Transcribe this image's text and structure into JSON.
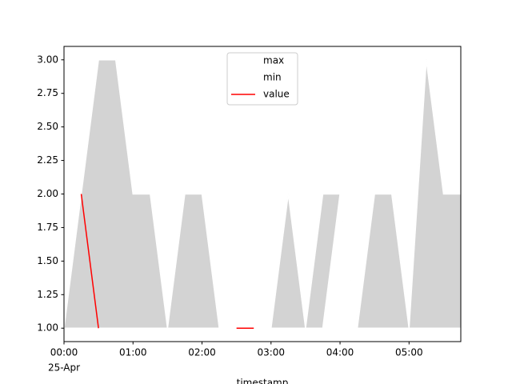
{
  "chart_data": {
    "type": "line",
    "x": [
      "00:00",
      "00:15",
      "00:30",
      "00:45",
      "01:00",
      "01:15",
      "01:30",
      "01:45",
      "02:00",
      "02:15",
      "02:30",
      "02:45",
      "03:00",
      "03:15",
      "03:30",
      "03:45",
      "04:00",
      "04:15",
      "04:30",
      "04:45",
      "05:00",
      "05:15",
      "05:30",
      "05:45"
    ],
    "series": [
      {
        "name": "max",
        "color": "#ffffff",
        "values": [
          1,
          2,
          3,
          3,
          2,
          2,
          1,
          2,
          2,
          1,
          1,
          1,
          1,
          2,
          1,
          2,
          2,
          1,
          2,
          2,
          1,
          3,
          2,
          2
        ]
      },
      {
        "name": "min",
        "color": "#ffffff",
        "values": [
          1,
          1,
          1,
          1,
          1,
          1,
          1,
          1,
          1,
          1,
          1,
          1,
          1,
          1,
          1,
          1,
          2,
          1,
          1,
          1,
          1,
          1,
          1,
          1
        ]
      },
      {
        "name": "value",
        "color": "#ff0000",
        "values": [
          null,
          2,
          1,
          null,
          null,
          null,
          null,
          null,
          null,
          null,
          1,
          1,
          null,
          null,
          null,
          null,
          null,
          null,
          null,
          null,
          null,
          null,
          null,
          null
        ]
      }
    ],
    "fill_between": [
      "max",
      "min"
    ],
    "fill_color": "#d3d3d3",
    "xlim": [
      "00:00",
      "05:45"
    ],
    "xticks": [
      "00:00",
      "01:00",
      "02:00",
      "03:00",
      "04:00",
      "05:00"
    ],
    "x_date_label": "25-Apr",
    "xlabel": "timestamp",
    "ylim": [
      0.9,
      3.1
    ],
    "yticks": [
      {
        "value": 1,
        "label": "1.00"
      },
      {
        "value": 1.25,
        "label": "1.25"
      },
      {
        "value": 1.5,
        "label": "1.50"
      },
      {
        "value": 1.75,
        "label": "1.75"
      },
      {
        "value": 2,
        "label": "2.00"
      },
      {
        "value": 2.25,
        "label": "2.25"
      },
      {
        "value": 2.5,
        "label": "2.50"
      },
      {
        "value": 2.75,
        "label": "2.75"
      },
      {
        "value": 3,
        "label": "3.00"
      }
    ],
    "legend": "upper center"
  }
}
